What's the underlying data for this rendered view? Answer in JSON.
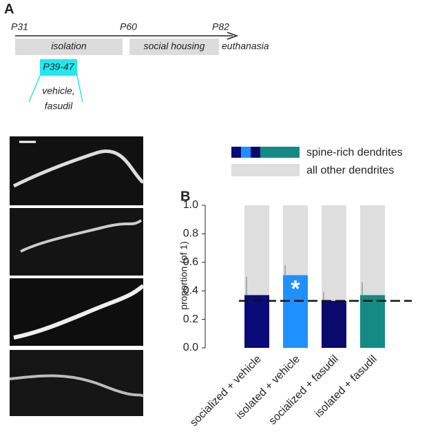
{
  "panel_a": {
    "label": "A",
    "timeline": {
      "start": "P31",
      "mid": "P60",
      "end": "P82",
      "phase1": "isolation",
      "phase2": "social housing",
      "final": "euthanasia",
      "treatment_window": "P39-47",
      "treatment_line1": "vehicle,",
      "treatment_line2": "fasudil"
    }
  },
  "chart_data": {
    "type": "bar",
    "stacked": true,
    "panel_label": "B",
    "categories": [
      "socialized + vehicle",
      "isolated + vehicle",
      "socialized + fasudil",
      "isolated + fasudil"
    ],
    "series": [
      {
        "name": "spine-rich dendrites",
        "colors": [
          "#0a0a78",
          "#1e90ff",
          "#0a0a6e",
          "#138a84"
        ],
        "values": [
          0.37,
          0.51,
          0.33,
          0.37
        ],
        "errors": [
          0.13,
          0.07,
          0.06,
          0.09
        ]
      },
      {
        "name": "all other dendrites",
        "color": "#dedede",
        "values": [
          0.63,
          0.49,
          0.67,
          0.63
        ]
      }
    ],
    "ylabel": "proportion (of 1)",
    "ylim": [
      0,
      1
    ],
    "yticks": [
      {
        "value": 0,
        "label": "0.0"
      },
      {
        "value": 0.2,
        "label": "0.2"
      },
      {
        "value": 0.4,
        "label": "0.4"
      },
      {
        "value": 0.6,
        "label": "0.6"
      },
      {
        "value": 0.8,
        "label": "0.8"
      },
      {
        "value": 1,
        "label": "1.0"
      }
    ],
    "reference_line": 0.33,
    "annotation": "*"
  }
}
